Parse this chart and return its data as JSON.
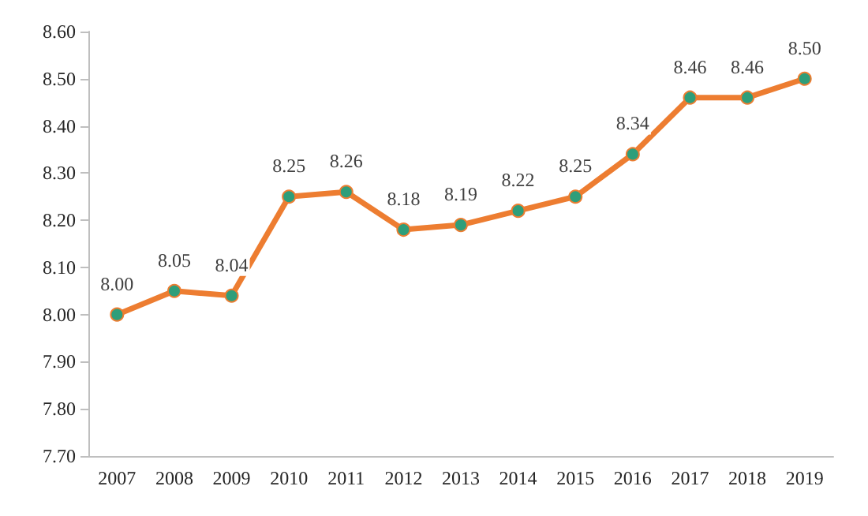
{
  "chart_data": {
    "type": "line",
    "categories": [
      "2007",
      "2008",
      "2009",
      "2010",
      "2011",
      "2012",
      "2013",
      "2014",
      "2015",
      "2016",
      "2017",
      "2018",
      "2019"
    ],
    "series": [
      {
        "color": "#ed7d31",
        "colors": [
          "#2e9e7a",
          "#2e9e7a",
          "#2e9e7a",
          "#2e9e7a",
          "#2e9e7a",
          "#2e9e7a",
          "#2e9e7a",
          "#2e9e7a",
          "#2e9e7a",
          "#2e9e7a",
          "#2e9e7a",
          "#2e9e7a",
          "#2e9e7a"
        ],
        "values": [
          8.0,
          8.05,
          8.04,
          8.25,
          8.26,
          8.18,
          8.19,
          8.22,
          8.25,
          8.34,
          8.46,
          8.46,
          8.5
        ],
        "value_labels": [
          "8.00",
          "8.05",
          "8.04",
          "8.25",
          "8.26",
          "8.18",
          "8.19",
          "8.22",
          "8.25",
          "8.34",
          "8.46",
          "8.46",
          "8.50"
        ]
      }
    ],
    "ylim": [
      7.7,
      8.6
    ],
    "yticks": [
      {
        "value": 7.7,
        "label": "7.70"
      },
      {
        "value": 7.8,
        "label": "7.80"
      },
      {
        "value": 7.9,
        "label": "7.90"
      },
      {
        "value": 8.0,
        "label": "8.00"
      },
      {
        "value": 8.1,
        "label": "8.10"
      },
      {
        "value": 8.2,
        "label": "8.20"
      },
      {
        "value": 8.3,
        "label": "8.30"
      },
      {
        "value": 8.4,
        "label": "8.40"
      },
      {
        "value": 8.5,
        "label": "8.50"
      },
      {
        "value": 8.6,
        "label": "8.60"
      }
    ],
    "grid": false,
    "marker": "circle",
    "line_style": "solid"
  }
}
